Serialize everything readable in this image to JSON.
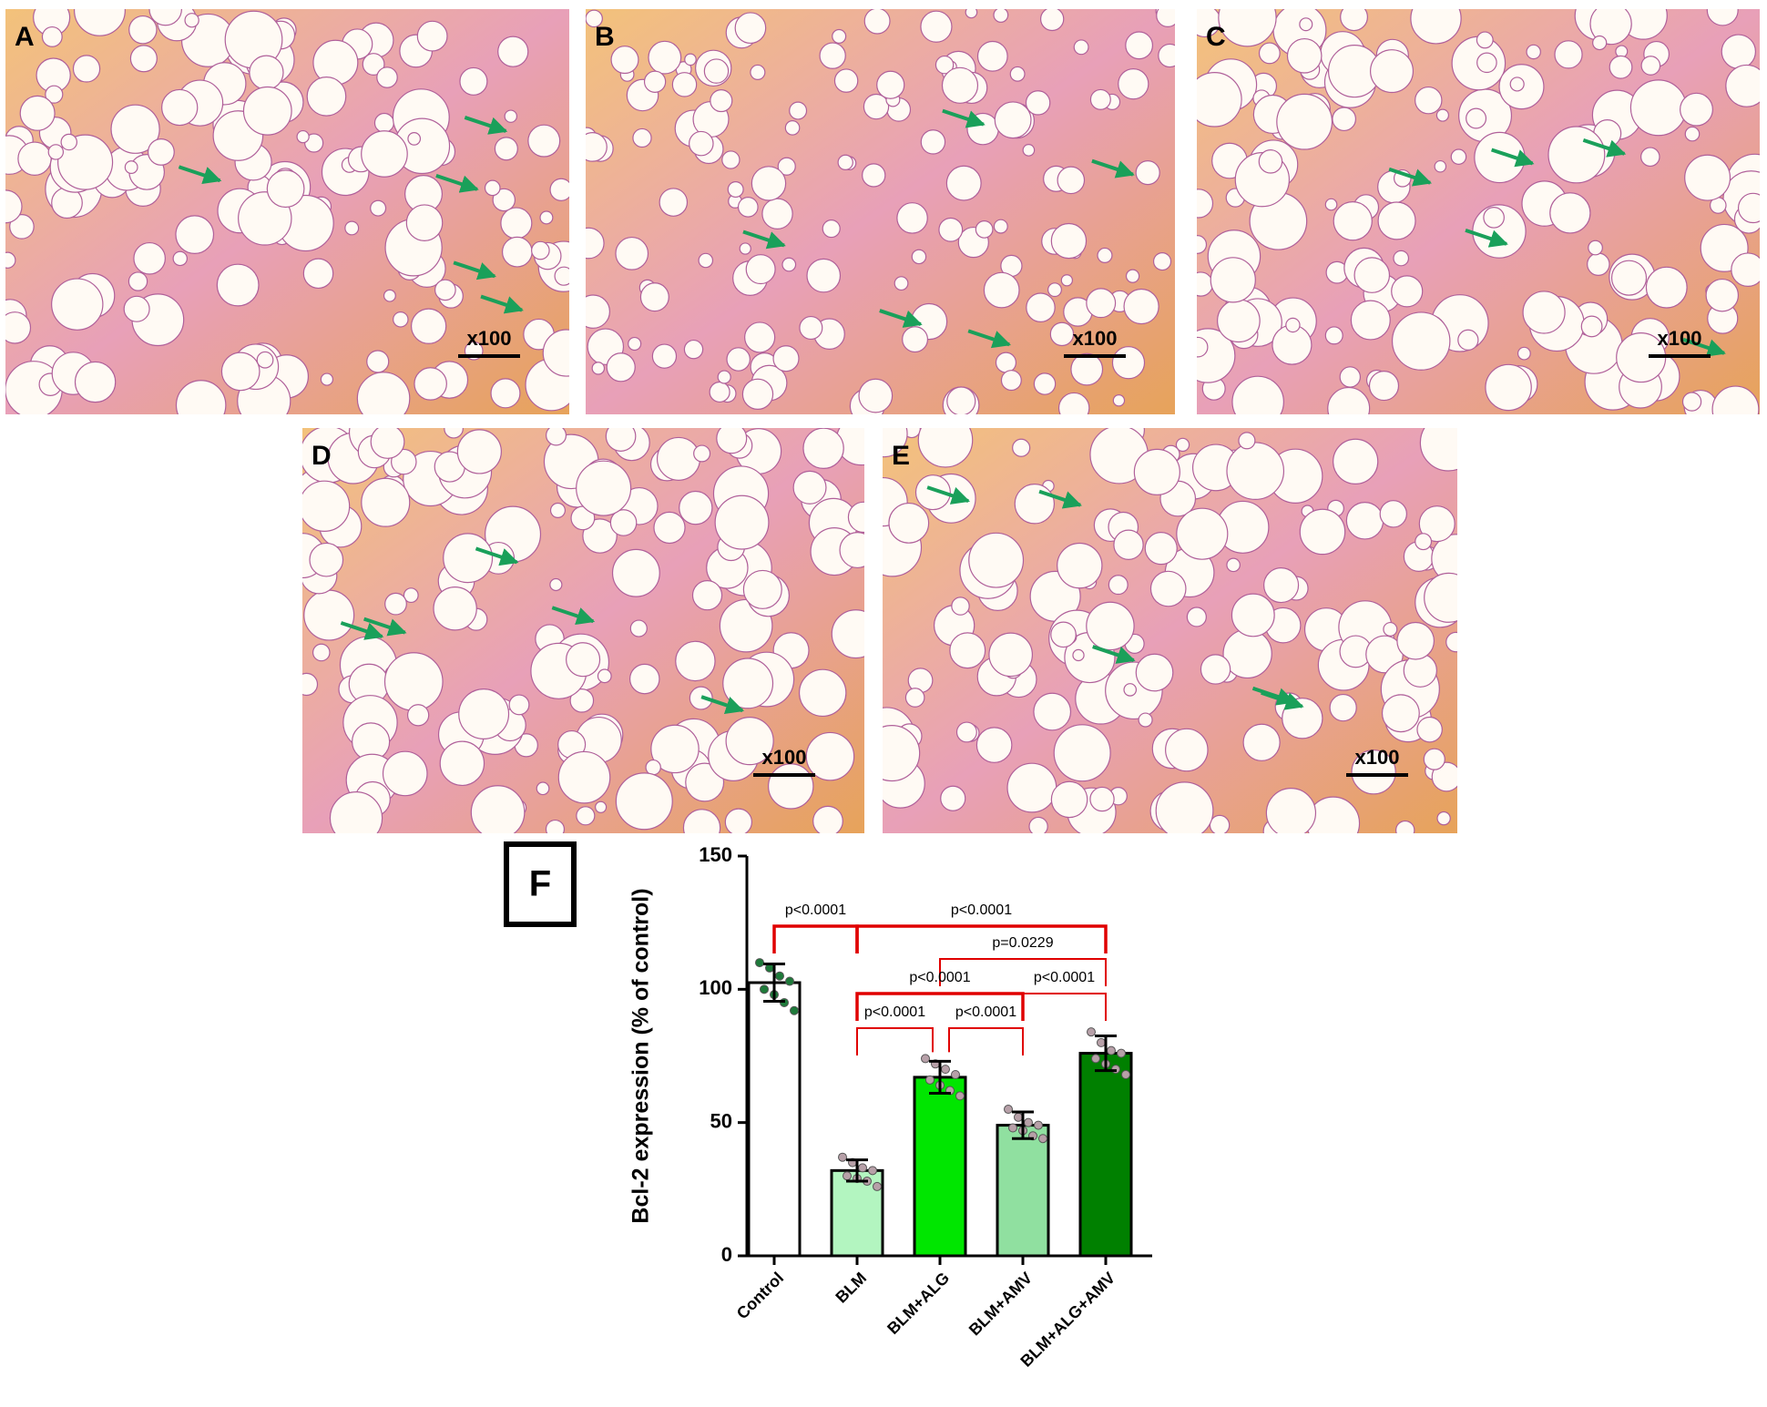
{
  "panels": [
    {
      "label": "A",
      "scale": "x100"
    },
    {
      "label": "B",
      "scale": "x100"
    },
    {
      "label": "C",
      "scale": "x100"
    },
    {
      "label": "D",
      "scale": "x100"
    },
    {
      "label": "E",
      "scale": "x100"
    }
  ],
  "chart_data": {
    "type": "bar",
    "panel_label": "F",
    "y_label": "Bcl-2 expression (% of control)",
    "categories": [
      "Control",
      "BLM",
      "BLM+ALG",
      "BLM+AMV",
      "BLM+ALG+AMV"
    ],
    "values": [
      102.5,
      32,
      67,
      49,
      76
    ],
    "errors": [
      7,
      4,
      6,
      5,
      6.5
    ],
    "colors": [
      "#ffffff",
      "#b3f5c0",
      "#00e600",
      "#90e0a0",
      "#008000"
    ],
    "points": [
      [
        110,
        108,
        105,
        103,
        100,
        98,
        95,
        92
      ],
      [
        37,
        35,
        33,
        32,
        30,
        29,
        28,
        26
      ],
      [
        74,
        72,
        70,
        68,
        66,
        64,
        62,
        60
      ],
      [
        55,
        52,
        50,
        49,
        48,
        47,
        45,
        44
      ],
      [
        84,
        80,
        77,
        76,
        74,
        72,
        70,
        68
      ]
    ],
    "ylim": [
      0,
      150
    ],
    "yticks": [
      0,
      50,
      100,
      150
    ],
    "comparisons": [
      {
        "pair": [
          0,
          1
        ],
        "label": "p<0.0001"
      },
      {
        "pair": [
          1,
          4
        ],
        "label": "p<0.0001"
      },
      {
        "pair": [
          2,
          4
        ],
        "label": "p=0.0229"
      },
      {
        "pair": [
          1,
          3
        ],
        "label": "p<0.0001"
      },
      {
        "pair": [
          3,
          4
        ],
        "label": "p<0.0001"
      },
      {
        "pair": [
          1,
          2
        ],
        "label": "p<0.0001"
      },
      {
        "pair": [
          2,
          3
        ],
        "label": "p<0.0001"
      }
    ],
    "bracket_color": "#e00000"
  }
}
